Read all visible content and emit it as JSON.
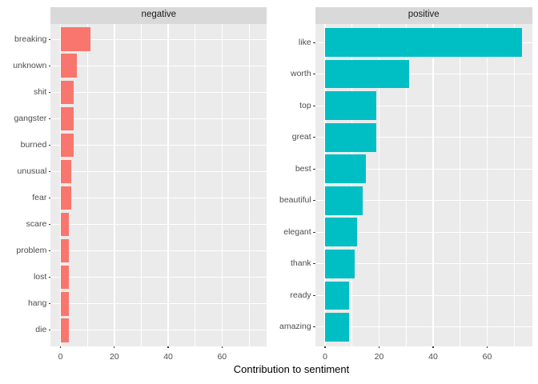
{
  "chart_data": {
    "type": "bar",
    "orientation": "horizontal",
    "xlabel": "Contribution to sentiment",
    "ylabel": "",
    "xlim": [
      -3.65,
      76.65
    ],
    "x_ticks_major": [
      0,
      20,
      40,
      60
    ],
    "x_ticks_minor": [
      10,
      30,
      50,
      70
    ],
    "grid": "on",
    "legend": "none",
    "facets": [
      {
        "label": "negative",
        "bar_color": "#F8766D",
        "categories": [
          "breaking",
          "unknown",
          "shit",
          "gangster",
          "burned",
          "unusual",
          "fear",
          "scare",
          "problem",
          "lost",
          "hang",
          "die"
        ],
        "values": [
          11,
          6,
          5,
          5,
          5,
          4,
          4,
          3,
          3,
          3,
          3,
          3
        ]
      },
      {
        "label": "positive",
        "bar_color": "#00BFC4",
        "categories": [
          "like",
          "worth",
          "top",
          "great",
          "best",
          "beautiful",
          "elegant",
          "thank",
          "ready",
          "amazing"
        ],
        "values": [
          73,
          31,
          19,
          19,
          15,
          14,
          12,
          11,
          9,
          9
        ]
      }
    ],
    "colors": {
      "panel_bg": "#EBEBEB",
      "strip_bg": "#D9D9D9",
      "grid": "#FFFFFF",
      "axis_text": "#4D4D4D",
      "strip_text": "#1A1A1A",
      "tick_mark": "#333333",
      "title_text": "#000000"
    }
  }
}
